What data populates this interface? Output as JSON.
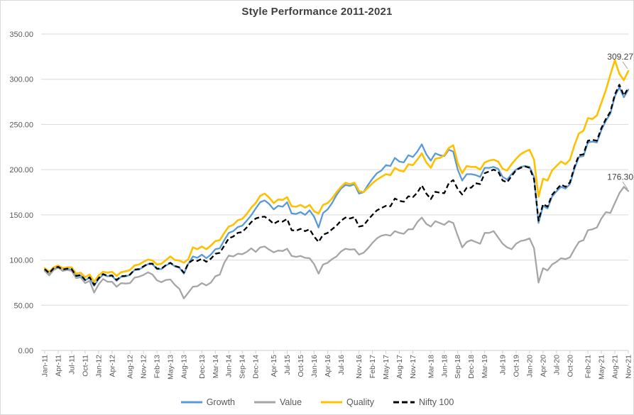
{
  "chart_data": {
    "type": "line",
    "title": "Style Performance 2011-2021",
    "xlabel": "",
    "ylabel": "",
    "ylim": [
      0,
      350
    ],
    "grid": true,
    "legend_position": "bottom",
    "y_tick_labels": [
      "0.00",
      "50.00",
      "100.00",
      "150.00",
      "200.00",
      "250.00",
      "300.00",
      "350.00"
    ],
    "months_total": 131,
    "x_labels": [
      {
        "l": "Jan-11",
        "m": 0
      },
      {
        "l": "Apr-11",
        "m": 3
      },
      {
        "l": "Jul-11",
        "m": 6
      },
      {
        "l": "Oct-11",
        "m": 9
      },
      {
        "l": "Jan-12",
        "m": 12
      },
      {
        "l": "Apr-12",
        "m": 15
      },
      {
        "l": "Aug-12",
        "m": 19
      },
      {
        "l": "Nov-12",
        "m": 22
      },
      {
        "l": "Feb-13",
        "m": 25
      },
      {
        "l": "May-13",
        "m": 28
      },
      {
        "l": "Aug-13",
        "m": 31
      },
      {
        "l": "Dec-13",
        "m": 35
      },
      {
        "l": "Mar-14",
        "m": 38
      },
      {
        "l": "Jun-14",
        "m": 41
      },
      {
        "l": "Sep-14",
        "m": 44
      },
      {
        "l": "Dec-14",
        "m": 47
      },
      {
        "l": "Apr-15",
        "m": 51
      },
      {
        "l": "Jul-15",
        "m": 54
      },
      {
        "l": "Oct-15",
        "m": 57
      },
      {
        "l": "Jan-16",
        "m": 60
      },
      {
        "l": "Apr-16",
        "m": 63
      },
      {
        "l": "Jul-16",
        "m": 66
      },
      {
        "l": "Nov-16",
        "m": 70
      },
      {
        "l": "Feb-17",
        "m": 73
      },
      {
        "l": "May-17",
        "m": 76
      },
      {
        "l": "Aug-17",
        "m": 79
      },
      {
        "l": "Nov-17",
        "m": 82
      },
      {
        "l": "Mar-18",
        "m": 86
      },
      {
        "l": "Jun-18",
        "m": 89
      },
      {
        "l": "Sep-18",
        "m": 92
      },
      {
        "l": "Dec-18",
        "m": 95
      },
      {
        "l": "Mar-19",
        "m": 98
      },
      {
        "l": "Jul-19",
        "m": 102
      },
      {
        "l": "Oct-19",
        "m": 105
      },
      {
        "l": "Jan-20",
        "m": 108
      },
      {
        "l": "Apr-20",
        "m": 111
      },
      {
        "l": "Jul-20",
        "m": 114
      },
      {
        "l": "Oct-20",
        "m": 117
      },
      {
        "l": "Feb-21",
        "m": 121
      },
      {
        "l": "May-21",
        "m": 124
      },
      {
        "l": "Aug-21",
        "m": 127
      },
      {
        "l": "Nov-21",
        "m": 130
      }
    ],
    "series": [
      {
        "name": "Growth",
        "color": "#5B9BD5",
        "dashed": false,
        "values": [
          89,
          84,
          90,
          92,
          88.5,
          90,
          89.5,
          82,
          83,
          77.5,
          80.5,
          71.5,
          79,
          84,
          82,
          82.5,
          77,
          81.5,
          82,
          83.5,
          89,
          89.5,
          92.5,
          95.5,
          95.5,
          90,
          90,
          94,
          96.5,
          93,
          91.5,
          85,
          96,
          104,
          102.5,
          106,
          102,
          106,
          112,
          113,
          122,
          130,
          132,
          136.5,
          138,
          143.5,
          149.5,
          157,
          164,
          166,
          162,
          156,
          160,
          159,
          164,
          151.5,
          151,
          153,
          150,
          155,
          148,
          136,
          152,
          156,
          163,
          172,
          179,
          183,
          182,
          184,
          173.5,
          175,
          183,
          190,
          196,
          199,
          205,
          204,
          213,
          209,
          208,
          216,
          214,
          220,
          228,
          217,
          210,
          218,
          216,
          215,
          222,
          220,
          200,
          188,
          195,
          195,
          194,
          192,
          202,
          202,
          203,
          201,
          192,
          189,
          195,
          200,
          203,
          204,
          203,
          192,
          141,
          160,
          157,
          170,
          176,
          181,
          179,
          184,
          201,
          214,
          215,
          230,
          231,
          230,
          244,
          254,
          262,
          281,
          291,
          280,
          288.5
        ]
      },
      {
        "name": "Value",
        "color": "#A6A6A6",
        "dashed": false,
        "values": [
          88,
          83,
          89,
          91.5,
          88,
          89,
          88,
          80,
          81,
          74.5,
          77,
          64,
          73,
          79,
          76,
          76,
          70.5,
          74.5,
          74,
          74.5,
          80.5,
          81.5,
          83.5,
          86.5,
          84,
          77.5,
          75.5,
          78,
          78.5,
          72.5,
          68,
          57.5,
          64,
          70.5,
          71,
          74.5,
          72,
          75,
          82,
          84,
          97,
          105,
          104,
          107,
          106.5,
          109,
          113,
          109,
          114,
          115,
          111.5,
          108.5,
          110.5,
          110,
          112.5,
          104.5,
          103.5,
          104.5,
          102.5,
          102,
          95.5,
          85,
          95,
          97,
          101,
          104,
          109.5,
          112.5,
          111.5,
          112,
          106,
          108,
          113,
          119,
          124,
          127,
          128,
          127,
          132,
          130,
          129,
          134,
          134,
          142,
          147,
          140,
          137,
          143,
          141,
          139,
          143,
          141,
          127,
          114,
          120,
          122,
          120,
          118,
          130,
          130,
          132,
          125,
          118,
          114,
          112,
          118,
          121,
          122,
          124,
          113,
          75,
          91,
          88.5,
          95,
          98,
          102,
          101,
          103,
          112,
          120,
          122,
          133,
          134,
          136,
          146,
          153,
          152,
          163,
          174,
          181,
          176.3
        ]
      },
      {
        "name": "Quality",
        "color": "#FFC000",
        "dashed": false,
        "values": [
          91,
          87,
          92,
          94,
          91,
          92,
          92,
          85,
          86,
          81,
          84,
          76,
          83,
          87,
          86,
          87,
          82.5,
          86.5,
          87.5,
          89,
          94,
          95,
          98,
          100.5,
          99.5,
          95,
          96,
          100,
          104,
          100,
          99.5,
          97,
          101,
          114,
          112,
          115,
          112,
          116,
          121,
          122,
          130,
          137,
          139,
          144,
          145.5,
          151,
          158,
          163,
          171,
          173.5,
          169,
          163,
          167,
          166.5,
          169.5,
          159.5,
          159,
          161,
          158,
          161,
          154,
          151.5,
          161,
          163,
          168,
          175,
          181,
          185.5,
          184,
          185.5,
          176.5,
          175,
          180,
          185,
          189,
          192,
          195,
          194,
          202,
          199,
          198,
          206,
          205,
          211,
          218,
          208,
          202,
          212,
          213,
          216,
          224,
          227,
          207,
          196,
          204,
          203,
          203,
          200,
          208,
          210,
          211,
          209,
          201,
          199,
          206,
          212,
          217,
          220,
          222,
          211,
          170,
          190,
          188,
          199,
          204,
          209,
          206,
          211,
          227,
          240,
          243,
          257,
          256,
          260,
          274,
          288,
          305,
          321,
          306,
          299,
          309.27
        ]
      },
      {
        "name": "Nifty 100",
        "color": "#000000",
        "dashed": true,
        "values": [
          90,
          85.5,
          91,
          92.5,
          89.5,
          90.5,
          90,
          82.5,
          83.5,
          78,
          81,
          72.5,
          80,
          84.5,
          82.5,
          83,
          78,
          82,
          82.5,
          84,
          89.5,
          90,
          93,
          96,
          96,
          90.5,
          90.5,
          94.5,
          97,
          93.5,
          92,
          86,
          96.5,
          100,
          99,
          101.5,
          98,
          101.5,
          107,
          108,
          116,
          124,
          126,
          130,
          131,
          136,
          142,
          146,
          147.5,
          148,
          144.5,
          140,
          143,
          142.5,
          145.5,
          133,
          132.5,
          134.5,
          132,
          134,
          126,
          120,
          128,
          130,
          134,
          138,
          143.5,
          147,
          146,
          147.5,
          137,
          138,
          144.5,
          150,
          155,
          157.5,
          160,
          159.5,
          168,
          165.5,
          164.5,
          170.5,
          169.5,
          174.5,
          182.5,
          173.5,
          167.5,
          175.5,
          174.5,
          174,
          185,
          188.5,
          178.5,
          172.5,
          180,
          180,
          185,
          184,
          196,
          198,
          200,
          198,
          188,
          186,
          193,
          199.5,
          202,
          203.5,
          202,
          189.5,
          143.5,
          162,
          159,
          172,
          178,
          183.5,
          181,
          186,
          203,
          216,
          217,
          232,
          233,
          232,
          246,
          256,
          264,
          283,
          294,
          282,
          290.5
        ]
      }
    ],
    "annotations": [
      {
        "series": "Quality",
        "text": "309.27"
      },
      {
        "series": "Value",
        "text": "176.30"
      }
    ]
  }
}
